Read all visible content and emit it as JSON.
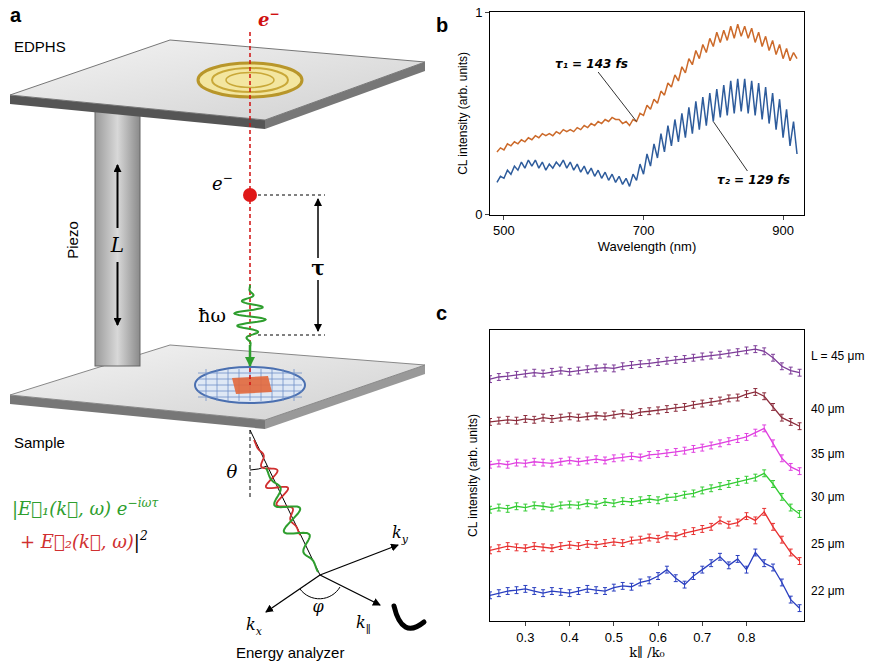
{
  "diagram": {
    "panel_label": "a",
    "top_plate": "EDPHS",
    "electron": {
      "base": "e",
      "sup": "−"
    },
    "piezo": "Piezo",
    "length": "L",
    "delay": "τ",
    "photon": "ħω",
    "sample": "Sample",
    "polar_angle": "θ",
    "azimuth": "φ",
    "kx": {
      "base": "k",
      "sub": "x"
    },
    "ky": {
      "base": "k",
      "sub": "y"
    },
    "kpar": {
      "base": "k",
      "sub": "∥"
    },
    "detector": "Energy analyzer",
    "formula": {
      "line1": [
        {
          "text": "|E⃗₁(k⃗, ω) e"
        },
        {
          "sup": "−iωτ"
        }
      ],
      "line2": [
        {
          "text": "+ E⃗₂(k⃗, ω)"
        }
      ],
      "closing": [
        {
          "text": "|"
        },
        {
          "sup": "2"
        }
      ]
    }
  },
  "chart_data": [
    {
      "panel_label": "b",
      "type": "line",
      "x_label": "Wavelength (nm)",
      "y_label": "CL intensity (arb. units)",
      "x": [
        490,
        495,
        500,
        505,
        510,
        515,
        520,
        525,
        530,
        535,
        540,
        545,
        550,
        555,
        560,
        565,
        570,
        575,
        580,
        585,
        590,
        595,
        600,
        605,
        610,
        615,
        620,
        625,
        630,
        635,
        640,
        645,
        650,
        655,
        660,
        665,
        670,
        675,
        680,
        685,
        690,
        695,
        700,
        705,
        710,
        715,
        720,
        725,
        730,
        735,
        740,
        745,
        750,
        755,
        760,
        765,
        770,
        775,
        780,
        785,
        790,
        795,
        800,
        805,
        810,
        815,
        820,
        825,
        830,
        835,
        840,
        845,
        850,
        855,
        860,
        865,
        870,
        875,
        880,
        885,
        890,
        895,
        900,
        905,
        910,
        915,
        920
      ],
      "series": [
        {
          "name": "τ₁ = 143 fs",
          "color": "#cc6a2a",
          "values": [
            0.31,
            0.33,
            0.32,
            0.35,
            0.34,
            0.36,
            0.35,
            0.37,
            0.36,
            0.38,
            0.37,
            0.39,
            0.38,
            0.4,
            0.39,
            0.4,
            0.39,
            0.41,
            0.4,
            0.42,
            0.41,
            0.42,
            0.41,
            0.43,
            0.42,
            0.44,
            0.43,
            0.45,
            0.44,
            0.46,
            0.45,
            0.47,
            0.46,
            0.48,
            0.47,
            0.47,
            0.45,
            0.46,
            0.44,
            0.47,
            0.46,
            0.5,
            0.49,
            0.54,
            0.52,
            0.57,
            0.55,
            0.61,
            0.59,
            0.65,
            0.63,
            0.69,
            0.66,
            0.73,
            0.7,
            0.77,
            0.74,
            0.81,
            0.77,
            0.84,
            0.8,
            0.87,
            0.83,
            0.9,
            0.85,
            0.91,
            0.86,
            0.93,
            0.87,
            0.94,
            0.88,
            0.93,
            0.87,
            0.92,
            0.85,
            0.9,
            0.83,
            0.88,
            0.81,
            0.86,
            0.79,
            0.84,
            0.77,
            0.82,
            0.76,
            0.8,
            0.77
          ]
        },
        {
          "name": "τ₂ = 129 fs",
          "color": "#2e5c9c",
          "values": [
            0.16,
            0.19,
            0.18,
            0.22,
            0.2,
            0.24,
            0.22,
            0.26,
            0.23,
            0.27,
            0.24,
            0.27,
            0.23,
            0.26,
            0.22,
            0.25,
            0.23,
            0.26,
            0.24,
            0.27,
            0.23,
            0.26,
            0.22,
            0.25,
            0.21,
            0.24,
            0.2,
            0.23,
            0.19,
            0.22,
            0.18,
            0.21,
            0.17,
            0.2,
            0.16,
            0.19,
            0.15,
            0.18,
            0.14,
            0.2,
            0.17,
            0.25,
            0.2,
            0.3,
            0.24,
            0.35,
            0.28,
            0.4,
            0.31,
            0.44,
            0.34,
            0.47,
            0.36,
            0.5,
            0.38,
            0.53,
            0.4,
            0.56,
            0.42,
            0.58,
            0.44,
            0.6,
            0.46,
            0.62,
            0.48,
            0.64,
            0.49,
            0.66,
            0.5,
            0.67,
            0.51,
            0.67,
            0.5,
            0.66,
            0.49,
            0.65,
            0.47,
            0.63,
            0.45,
            0.6,
            0.42,
            0.57,
            0.38,
            0.52,
            0.34,
            0.46,
            0.3
          ]
        }
      ],
      "xlim": [
        480,
        930
      ],
      "ylim": [
        0,
        1
      ],
      "xticks": [
        500,
        700,
        900
      ],
      "yticks": [
        0,
        1
      ],
      "grid": false
    },
    {
      "panel_label": "c",
      "type": "line",
      "x_label": "k∥ /k₀",
      "y_label": "CL intensity (arb. units)",
      "x": [
        0.22,
        0.24,
        0.26,
        0.28,
        0.3,
        0.32,
        0.34,
        0.36,
        0.38,
        0.4,
        0.42,
        0.44,
        0.46,
        0.48,
        0.5,
        0.52,
        0.54,
        0.56,
        0.58,
        0.6,
        0.62,
        0.64,
        0.66,
        0.68,
        0.7,
        0.72,
        0.74,
        0.76,
        0.78,
        0.8,
        0.82,
        0.84,
        0.86,
        0.88,
        0.9,
        0.92
      ],
      "series": [
        {
          "name": "L = 45 μm",
          "color": "#7d3c98",
          "error": 0.08,
          "values": [
            6.05,
            6.1,
            6.12,
            6.15,
            6.18,
            6.2,
            6.18,
            6.22,
            6.25,
            6.22,
            6.25,
            6.28,
            6.3,
            6.32,
            6.3,
            6.35,
            6.38,
            6.4,
            6.42,
            6.45,
            6.48,
            6.5,
            6.52,
            6.55,
            6.58,
            6.6,
            6.62,
            6.65,
            6.68,
            6.72,
            6.75,
            6.7,
            6.55,
            6.35,
            6.25,
            6.2
          ]
        },
        {
          "name": "40 μm",
          "color": "#8b2c3c",
          "error": 0.08,
          "values": [
            5.05,
            5.08,
            5.1,
            5.08,
            5.12,
            5.1,
            5.15,
            5.12,
            5.15,
            5.18,
            5.15,
            5.18,
            5.2,
            5.18,
            5.22,
            5.25,
            5.22,
            5.28,
            5.3,
            5.32,
            5.35,
            5.38,
            5.4,
            5.45,
            5.48,
            5.52,
            5.55,
            5.6,
            5.62,
            5.7,
            5.75,
            5.65,
            5.4,
            5.15,
            5.05,
            4.95
          ]
        },
        {
          "name": "35 μm",
          "color": "#e040e0",
          "error": 0.08,
          "values": [
            4.05,
            4.08,
            4.05,
            4.1,
            4.08,
            4.12,
            4.1,
            4.08,
            4.12,
            4.15,
            4.12,
            4.15,
            4.18,
            4.15,
            4.2,
            4.22,
            4.25,
            4.22,
            4.28,
            4.3,
            4.32,
            4.35,
            4.38,
            4.42,
            4.45,
            4.5,
            4.55,
            4.6,
            4.65,
            4.7,
            4.8,
            4.9,
            4.55,
            4.2,
            4.0,
            3.9
          ]
        },
        {
          "name": "30 μm",
          "color": "#33cc33",
          "error": 0.08,
          "values": [
            3.0,
            3.05,
            3.02,
            3.08,
            3.05,
            3.1,
            3.08,
            3.05,
            3.1,
            3.12,
            3.1,
            3.15,
            3.12,
            3.18,
            3.15,
            3.2,
            3.18,
            3.22,
            3.25,
            3.22,
            3.28,
            3.3,
            3.35,
            3.38,
            3.45,
            3.5,
            3.55,
            3.6,
            3.65,
            3.7,
            3.75,
            3.85,
            3.6,
            3.3,
            3.05,
            2.9
          ]
        },
        {
          "name": "25 μm",
          "color": "#e83030",
          "error": 0.08,
          "values": [
            2.05,
            2.1,
            2.15,
            2.12,
            2.1,
            2.15,
            2.12,
            2.1,
            2.15,
            2.18,
            2.15,
            2.2,
            2.18,
            2.22,
            2.25,
            2.22,
            2.28,
            2.3,
            2.35,
            2.32,
            2.4,
            2.38,
            2.45,
            2.5,
            2.55,
            2.6,
            2.75,
            2.65,
            2.7,
            2.85,
            2.75,
            2.95,
            2.6,
            2.3,
            2.0,
            1.8
          ]
        },
        {
          "name": "22 μm",
          "color": "#2a3fc0",
          "error": 0.08,
          "values": [
            1.0,
            1.05,
            1.1,
            1.12,
            1.15,
            1.1,
            1.05,
            1.1,
            1.08,
            1.05,
            1.1,
            1.15,
            1.12,
            1.1,
            1.18,
            1.22,
            1.2,
            1.3,
            1.35,
            1.45,
            1.6,
            1.4,
            1.25,
            1.45,
            1.6,
            1.75,
            1.9,
            1.7,
            1.85,
            1.6,
            2.0,
            1.75,
            1.65,
            1.3,
            0.9,
            0.7
          ]
        }
      ],
      "xlim": [
        0.22,
        0.93
      ],
      "ylim": [
        0.4,
        7.2
      ],
      "xticks": [
        0.3,
        0.4,
        0.5,
        0.6,
        0.7,
        0.8
      ],
      "tick_labels": "x",
      "grid": false
    }
  ]
}
